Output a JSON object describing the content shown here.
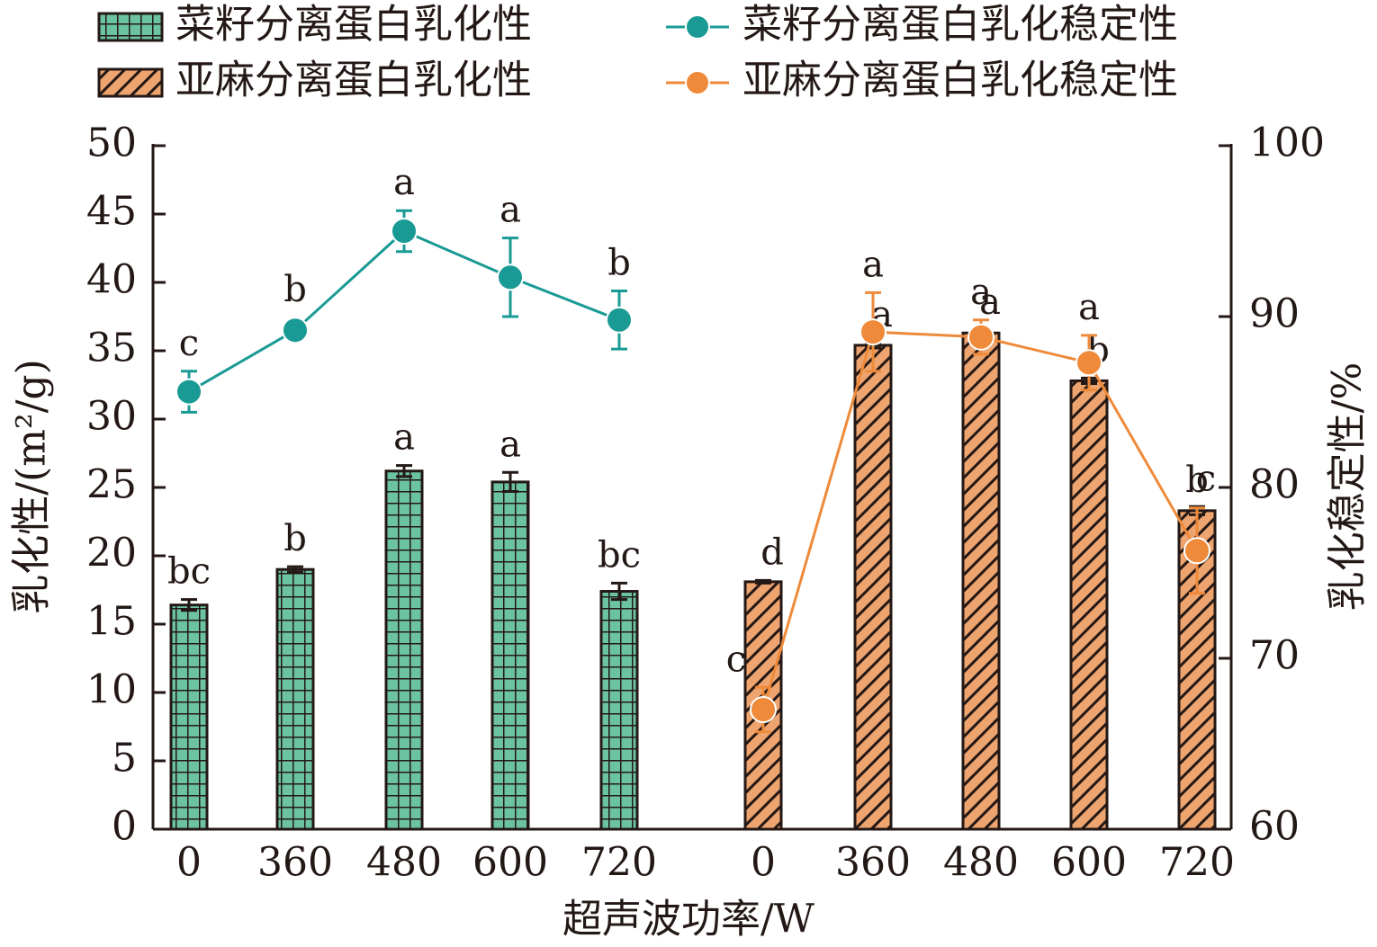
{
  "chart_data": {
    "type": "bar-line",
    "x_label": "超声波功率/W",
    "y_label": "乳化性/(m²/g)",
    "y2_label": "乳化稳定性/%",
    "categories": [
      "0",
      "360",
      "480",
      "600",
      "720",
      "0",
      "360",
      "480",
      "600",
      "720"
    ],
    "ylim": [
      0,
      50
    ],
    "yticks": [
      0,
      5,
      10,
      15,
      20,
      25,
      30,
      35,
      40,
      45,
      50
    ],
    "y2lim": [
      60,
      100
    ],
    "y2ticks": [
      60,
      70,
      80,
      90,
      100
    ],
    "series": [
      {
        "name": "菜籽分离蛋白乳化性",
        "type": "bar",
        "pattern": "grid",
        "color": "#6cc3a4",
        "values": [
          16.4,
          19.0,
          26.2,
          25.4,
          17.4,
          null,
          null,
          null,
          null,
          null
        ],
        "errors": [
          0.4,
          0.2,
          0.4,
          0.7,
          0.6,
          null,
          null,
          null,
          null,
          null
        ],
        "significance": [
          "bc",
          "b",
          "a",
          "a",
          "bc",
          null,
          null,
          null,
          null,
          null
        ]
      },
      {
        "name": "菜籽分离蛋白乳化稳定性",
        "type": "line",
        "axis": "y2",
        "color": "#1a9a94",
        "values": [
          85.6,
          89.2,
          95.0,
          92.3,
          89.8,
          null,
          null,
          null,
          null,
          null
        ],
        "errors": [
          1.2,
          0.2,
          1.2,
          2.3,
          1.7,
          null,
          null,
          null,
          null,
          null
        ],
        "significance": [
          "c",
          "b",
          "a",
          "a",
          "b",
          null,
          null,
          null,
          null,
          null
        ]
      },
      {
        "name": "亚麻分离蛋白乳化性",
        "type": "bar",
        "pattern": "hatch",
        "color": "#eea46e",
        "values": [
          null,
          null,
          null,
          null,
          null,
          18.1,
          35.4,
          36.3,
          32.8,
          23.3
        ],
        "errors": [
          null,
          null,
          null,
          null,
          null,
          0.1,
          0.2,
          0.2,
          0.2,
          0.3
        ],
        "significance": [
          null,
          null,
          null,
          null,
          null,
          "d",
          "a",
          "a",
          "b",
          "c"
        ]
      },
      {
        "name": "亚麻分离蛋白乳化稳定性",
        "type": "line",
        "axis": "y2",
        "color": "#ee8a3a",
        "values": [
          null,
          null,
          null,
          null,
          null,
          67.0,
          89.1,
          88.8,
          87.3,
          76.3
        ],
        "errors": [
          null,
          null,
          null,
          null,
          null,
          1.3,
          2.3,
          1.0,
          1.6,
          2.5
        ],
        "significance": [
          null,
          null,
          null,
          null,
          null,
          "c",
          "a",
          "a",
          "a",
          "b"
        ]
      }
    ]
  }
}
